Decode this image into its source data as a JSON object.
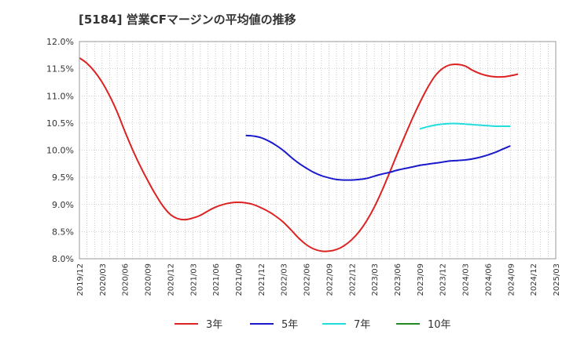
{
  "chart_data": {
    "type": "line",
    "title": "[5184]  営業CFマージンの平均値の推移",
    "xlabel": "",
    "ylabel": "",
    "ylim": [
      8.0,
      12.0
    ],
    "y_ticks": [
      "12.0%",
      "11.5%",
      "11.0%",
      "10.5%",
      "10.0%",
      "9.5%",
      "9.0%",
      "8.5%",
      "8.0%"
    ],
    "x_ticks": [
      "2019/12",
      "2020/03",
      "2020/06",
      "2020/09",
      "2020/12",
      "2021/03",
      "2021/06",
      "2021/09",
      "2021/12",
      "2022/03",
      "2022/06",
      "2022/09",
      "2022/12",
      "2023/03",
      "2023/06",
      "2023/09",
      "2023/12",
      "2024/03",
      "2024/06",
      "2024/09",
      "2024/12",
      "2025/03"
    ],
    "grid": true,
    "legend_position": "bottom",
    "series": [
      {
        "name": "3年",
        "color": "#dd2222",
        "points": [
          [
            "2019/12",
            11.7
          ],
          [
            "2020/01",
            11.6
          ],
          [
            "2020/02",
            11.45
          ],
          [
            "2020/03",
            11.25
          ],
          [
            "2020/04",
            11.0
          ],
          [
            "2020/05",
            10.7
          ],
          [
            "2020/06",
            10.35
          ],
          [
            "2020/07",
            10.02
          ],
          [
            "2020/08",
            9.72
          ],
          [
            "2020/09",
            9.45
          ],
          [
            "2020/10",
            9.2
          ],
          [
            "2020/11",
            8.98
          ],
          [
            "2020/12",
            8.82
          ],
          [
            "2021/01",
            8.74
          ],
          [
            "2021/02",
            8.72
          ],
          [
            "2021/03",
            8.75
          ],
          [
            "2021/04",
            8.8
          ],
          [
            "2021/05",
            8.88
          ],
          [
            "2021/06",
            8.95
          ],
          [
            "2021/07",
            9.0
          ],
          [
            "2021/08",
            9.03
          ],
          [
            "2021/09",
            9.04
          ],
          [
            "2021/10",
            9.03
          ],
          [
            "2021/11",
            9.0
          ],
          [
            "2021/12",
            8.94
          ],
          [
            "2022/01",
            8.87
          ],
          [
            "2022/02",
            8.78
          ],
          [
            "2022/03",
            8.67
          ],
          [
            "2022/04",
            8.53
          ],
          [
            "2022/05",
            8.38
          ],
          [
            "2022/06",
            8.26
          ],
          [
            "2022/07",
            8.18
          ],
          [
            "2022/08",
            8.14
          ],
          [
            "2022/09",
            8.14
          ],
          [
            "2022/10",
            8.17
          ],
          [
            "2022/11",
            8.24
          ],
          [
            "2022/12",
            8.35
          ],
          [
            "2023/01",
            8.5
          ],
          [
            "2023/02",
            8.7
          ],
          [
            "2023/03",
            8.95
          ],
          [
            "2023/04",
            9.25
          ],
          [
            "2023/05",
            9.58
          ],
          [
            "2023/06",
            9.92
          ],
          [
            "2023/07",
            10.25
          ],
          [
            "2023/08",
            10.57
          ],
          [
            "2023/09",
            10.87
          ],
          [
            "2023/10",
            11.14
          ],
          [
            "2023/11",
            11.36
          ],
          [
            "2023/12",
            11.5
          ],
          [
            "2024/01",
            11.57
          ],
          [
            "2024/02",
            11.58
          ],
          [
            "2024/03",
            11.55
          ],
          [
            "2024/04",
            11.47
          ],
          [
            "2024/05",
            11.41
          ],
          [
            "2024/06",
            11.37
          ],
          [
            "2024/07",
            11.35
          ],
          [
            "2024/08",
            11.35
          ],
          [
            "2024/09",
            11.37
          ],
          [
            "2024/10",
            11.4
          ]
        ]
      },
      {
        "name": "5年",
        "color": "#1a1acc",
        "points": [
          [
            "2021/10",
            10.27
          ],
          [
            "2021/11",
            10.26
          ],
          [
            "2021/12",
            10.23
          ],
          [
            "2022/01",
            10.17
          ],
          [
            "2022/02",
            10.09
          ],
          [
            "2022/03",
            9.99
          ],
          [
            "2022/04",
            9.87
          ],
          [
            "2022/05",
            9.76
          ],
          [
            "2022/06",
            9.67
          ],
          [
            "2022/07",
            9.59
          ],
          [
            "2022/08",
            9.53
          ],
          [
            "2022/09",
            9.49
          ],
          [
            "2022/10",
            9.46
          ],
          [
            "2022/11",
            9.45
          ],
          [
            "2022/12",
            9.45
          ],
          [
            "2023/01",
            9.46
          ],
          [
            "2023/02",
            9.48
          ],
          [
            "2023/03",
            9.52
          ],
          [
            "2023/04",
            9.56
          ],
          [
            "2023/05",
            9.59
          ],
          [
            "2023/06",
            9.63
          ],
          [
            "2023/07",
            9.66
          ],
          [
            "2023/08",
            9.69
          ],
          [
            "2023/09",
            9.72
          ],
          [
            "2023/10",
            9.74
          ],
          [
            "2023/11",
            9.76
          ],
          [
            "2023/12",
            9.78
          ],
          [
            "2024/01",
            9.8
          ],
          [
            "2024/02",
            9.81
          ],
          [
            "2024/03",
            9.82
          ],
          [
            "2024/04",
            9.84
          ],
          [
            "2024/05",
            9.87
          ],
          [
            "2024/06",
            9.91
          ],
          [
            "2024/07",
            9.96
          ],
          [
            "2024/08",
            10.02
          ],
          [
            "2024/09",
            10.08
          ]
        ]
      },
      {
        "name": "7年",
        "color": "#22dddd",
        "points": [
          [
            "2023/09",
            10.39
          ],
          [
            "2023/10",
            10.43
          ],
          [
            "2023/11",
            10.46
          ],
          [
            "2023/12",
            10.48
          ],
          [
            "2024/01",
            10.49
          ],
          [
            "2024/02",
            10.49
          ],
          [
            "2024/03",
            10.48
          ],
          [
            "2024/04",
            10.47
          ],
          [
            "2024/05",
            10.46
          ],
          [
            "2024/06",
            10.45
          ],
          [
            "2024/07",
            10.44
          ],
          [
            "2024/08",
            10.44
          ],
          [
            "2024/09",
            10.44
          ]
        ]
      },
      {
        "name": "10年",
        "color": "#228822",
        "points": []
      }
    ]
  }
}
